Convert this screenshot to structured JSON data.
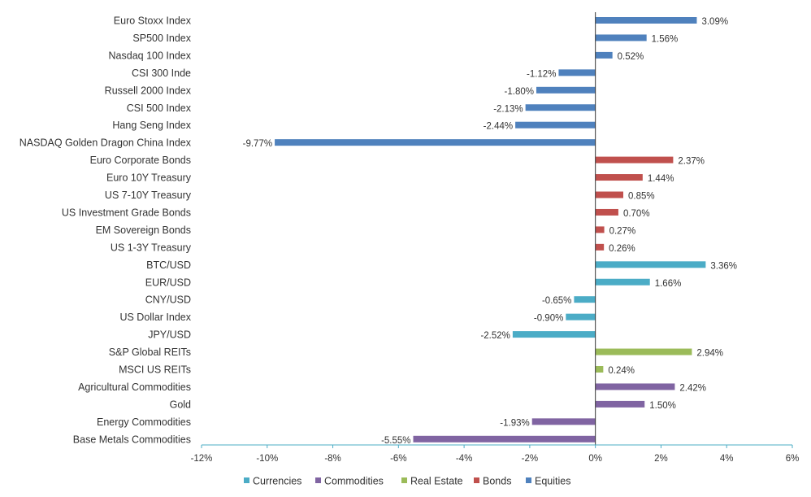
{
  "chart_data": {
    "type": "bar",
    "orientation": "horizontal",
    "title": "",
    "xlabel": "",
    "ylabel": "",
    "xlim": [
      -12,
      6
    ],
    "x_ticks": [
      -12,
      -10,
      -8,
      -6,
      -4,
      -2,
      0,
      2,
      4,
      6
    ],
    "x_tick_labels": [
      "-12%",
      "-10%",
      "-8%",
      "-6%",
      "-4%",
      "-2%",
      "0%",
      "2%",
      "4%",
      "6%"
    ],
    "grid": false,
    "legend_position": "bottom",
    "series": [
      {
        "name": "Currencies",
        "color": "#4bacc6"
      },
      {
        "name": "Commodities",
        "color": "#8064a2"
      },
      {
        "name": "Real Estate",
        "color": "#9bbb59"
      },
      {
        "name": "Bonds",
        "color": "#c0504d"
      },
      {
        "name": "Equities",
        "color": "#4f81bd"
      }
    ],
    "bars": [
      {
        "category": "Euro Stoxx Index",
        "value": 3.09,
        "label": "3.09%",
        "series": "Equities"
      },
      {
        "category": "SP500 Index",
        "value": 1.56,
        "label": "1.56%",
        "series": "Equities"
      },
      {
        "category": "Nasdaq 100 Index",
        "value": 0.52,
        "label": "0.52%",
        "series": "Equities"
      },
      {
        "category": "CSI 300 Inde",
        "value": -1.12,
        "label": "-1.12%",
        "series": "Equities"
      },
      {
        "category": "Russell 2000 Index",
        "value": -1.8,
        "label": "-1.80%",
        "series": "Equities"
      },
      {
        "category": "CSI 500 Index",
        "value": -2.13,
        "label": "-2.13%",
        "series": "Equities"
      },
      {
        "category": "Hang Seng Index",
        "value": -2.44,
        "label": "-2.44%",
        "series": "Equities"
      },
      {
        "category": "NASDAQ Golden Dragon China Index",
        "value": -9.77,
        "label": "-9.77%",
        "series": "Equities"
      },
      {
        "category": "Euro Corporate Bonds",
        "value": 2.37,
        "label": "2.37%",
        "series": "Bonds"
      },
      {
        "category": "Euro 10Y Treasury",
        "value": 1.44,
        "label": "1.44%",
        "series": "Bonds"
      },
      {
        "category": "US 7-10Y Treasury",
        "value": 0.85,
        "label": "0.85%",
        "series": "Bonds"
      },
      {
        "category": "US Investment Grade Bonds",
        "value": 0.7,
        "label": "0.70%",
        "series": "Bonds"
      },
      {
        "category": "EM Sovereign Bonds",
        "value": 0.27,
        "label": "0.27%",
        "series": "Bonds"
      },
      {
        "category": "US 1-3Y Treasury",
        "value": 0.26,
        "label": "0.26%",
        "series": "Bonds"
      },
      {
        "category": "BTC/USD",
        "value": 3.36,
        "label": "3.36%",
        "series": "Currencies"
      },
      {
        "category": "EUR/USD",
        "value": 1.66,
        "label": "1.66%",
        "series": "Currencies"
      },
      {
        "category": "CNY/USD",
        "value": -0.65,
        "label": "-0.65%",
        "series": "Currencies"
      },
      {
        "category": "US Dollar Index",
        "value": -0.9,
        "label": "-0.90%",
        "series": "Currencies"
      },
      {
        "category": "JPY/USD",
        "value": -2.52,
        "label": "-2.52%",
        "series": "Currencies"
      },
      {
        "category": "S&P Global REITs",
        "value": 2.94,
        "label": "2.94%",
        "series": "Real Estate"
      },
      {
        "category": "MSCI US REITs",
        "value": 0.24,
        "label": "0.24%",
        "series": "Real Estate"
      },
      {
        "category": "Agricultural Commodities",
        "value": 2.42,
        "label": "2.42%",
        "series": "Commodities"
      },
      {
        "category": "Gold",
        "value": 1.5,
        "label": "1.50%",
        "series": "Commodities"
      },
      {
        "category": "Energy Commodities",
        "value": -1.93,
        "label": "-1.93%",
        "series": "Commodities"
      },
      {
        "category": "Base Metals Commodities",
        "value": -5.55,
        "label": "-5.55%",
        "series": "Commodities"
      }
    ]
  }
}
